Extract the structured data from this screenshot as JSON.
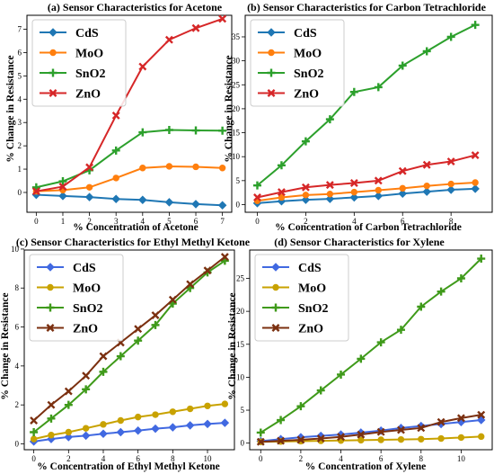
{
  "chart_data": [
    {
      "type": "line",
      "title": "(a) Sensor Characteristics for Acetone",
      "xlabel": "% Concentration of Acetone",
      "ylabel": "% Change in Resistance",
      "xlim": [
        -0.35,
        7.35
      ],
      "ylim": [
        -0.85,
        7.6
      ],
      "xticks": [
        0,
        1,
        2,
        3,
        4,
        5,
        6,
        7
      ],
      "yticks": [
        0,
        1,
        2,
        3,
        4,
        5,
        6,
        7
      ],
      "legend": "top-left",
      "x": [
        0,
        1,
        2,
        3,
        4,
        5,
        6,
        7
      ],
      "series": [
        {
          "name": "CdS",
          "color": "#1f77b4",
          "marker": "diamond",
          "values": [
            -0.1,
            -0.15,
            -0.2,
            -0.28,
            -0.32,
            -0.42,
            -0.5,
            -0.55
          ]
        },
        {
          "name": "MoO",
          "color": "#ff7f0e",
          "marker": "circle",
          "values": [
            0.05,
            0.1,
            0.22,
            0.62,
            1.05,
            1.12,
            1.1,
            1.05
          ]
        },
        {
          "name": "SnO2",
          "color": "#2ca02c",
          "marker": "plus",
          "values": [
            0.22,
            0.48,
            0.95,
            1.8,
            2.58,
            2.68,
            2.66,
            2.65
          ]
        },
        {
          "name": "ZnO",
          "color": "#d62728",
          "marker": "x",
          "values": [
            0.05,
            0.25,
            1.08,
            3.3,
            5.4,
            6.55,
            7.05,
            7.45
          ]
        }
      ]
    },
    {
      "type": "line",
      "title": "(b) Sensor Characteristics for Carbon Tetrachloride",
      "xlabel": "% Concentration of Carbon Tetrachloride",
      "ylabel": "% Change in Resistance",
      "xlim": [
        -0.5,
        9.7
      ],
      "ylim": [
        -1.6,
        39.5
      ],
      "xticks": [
        0,
        2,
        4,
        6,
        8
      ],
      "yticks": [
        0,
        5,
        10,
        15,
        20,
        25,
        30,
        35
      ],
      "legend": "top-left",
      "x": [
        0,
        1,
        2,
        3,
        4,
        5,
        6,
        7,
        8,
        9
      ],
      "series": [
        {
          "name": "CdS",
          "color": "#1f77b4",
          "marker": "diamond",
          "values": [
            0.3,
            0.7,
            1.0,
            1.2,
            1.5,
            1.8,
            2.3,
            2.7,
            3.1,
            3.3
          ]
        },
        {
          "name": "MoO",
          "color": "#ff7f0e",
          "marker": "circle",
          "values": [
            0.8,
            1.5,
            2.0,
            2.2,
            2.6,
            3.0,
            3.4,
            3.9,
            4.3,
            4.6
          ]
        },
        {
          "name": "SnO2",
          "color": "#2ca02c",
          "marker": "plus",
          "values": [
            4.0,
            8.2,
            13.2,
            17.8,
            23.5,
            24.5,
            29.0,
            32.0,
            35.0,
            37.5
          ]
        },
        {
          "name": "ZnO",
          "color": "#d62728",
          "marker": "x",
          "values": [
            1.5,
            2.6,
            3.6,
            4.1,
            4.5,
            5.0,
            7.0,
            8.3,
            9.0,
            10.3
          ]
        }
      ]
    },
    {
      "type": "line",
      "title": "(c) Sensor Characteristics for Ethyl Methyl Ketone",
      "xlabel": "% Concentration of Ethyl Methyl Ketone",
      "ylabel": "% Change in Resistance",
      "xlim": [
        -0.55,
        11.55
      ],
      "ylim": [
        -0.3,
        9.95
      ],
      "xticks": [
        0,
        2,
        4,
        6,
        8,
        10
      ],
      "yticks": [
        0,
        2,
        4,
        6,
        8,
        10
      ],
      "legend": "top-left",
      "x": [
        0,
        1,
        2,
        3,
        4,
        5,
        6,
        7,
        8,
        9,
        10,
        11
      ],
      "series": [
        {
          "name": "CdS",
          "color": "#4169e1",
          "marker": "diamond",
          "values": [
            0.12,
            0.25,
            0.35,
            0.42,
            0.52,
            0.6,
            0.68,
            0.78,
            0.85,
            0.95,
            1.02,
            1.08
          ]
        },
        {
          "name": "MoO",
          "color": "#c8a200",
          "marker": "circle",
          "values": [
            0.25,
            0.45,
            0.6,
            0.8,
            1.0,
            1.2,
            1.38,
            1.5,
            1.65,
            1.8,
            1.95,
            2.05
          ]
        },
        {
          "name": "SnO2",
          "color": "#3f9a1a",
          "marker": "plus",
          "values": [
            0.6,
            1.3,
            2.0,
            2.8,
            3.7,
            4.5,
            5.3,
            6.1,
            7.2,
            8.0,
            8.8,
            9.4
          ]
        },
        {
          "name": "ZnO",
          "color": "#7b3010",
          "marker": "x",
          "values": [
            1.2,
            2.0,
            2.7,
            3.5,
            4.5,
            5.2,
            5.9,
            6.6,
            7.4,
            8.2,
            8.9,
            9.6
          ]
        }
      ]
    },
    {
      "type": "line",
      "title": "(d) Sensor Characteristics for Xylene",
      "xlabel": "% Concentration of Xylene",
      "ylabel": "% Change in Resistance",
      "xlim": [
        -0.55,
        11.55
      ],
      "ylim": [
        -1.0,
        29.3
      ],
      "xticks": [
        0,
        2,
        4,
        6,
        8,
        10
      ],
      "yticks": [
        0,
        5,
        10,
        15,
        20,
        25
      ],
      "legend": "top-left",
      "x": [
        0,
        1,
        2,
        3,
        4,
        5,
        6,
        7,
        8,
        9,
        10,
        11
      ],
      "series": [
        {
          "name": "CdS",
          "color": "#4169e1",
          "marker": "diamond",
          "values": [
            0.3,
            0.6,
            0.9,
            1.1,
            1.3,
            1.6,
            1.9,
            2.3,
            2.6,
            2.9,
            3.2,
            3.5
          ]
        },
        {
          "name": "MoO",
          "color": "#c8a200",
          "marker": "circle",
          "values": [
            0.2,
            0.25,
            0.3,
            0.35,
            0.4,
            0.45,
            0.5,
            0.55,
            0.6,
            0.7,
            0.85,
            1.0
          ]
        },
        {
          "name": "SnO2",
          "color": "#3f9a1a",
          "marker": "plus",
          "values": [
            1.6,
            3.5,
            5.6,
            8.0,
            10.4,
            12.8,
            15.3,
            17.2,
            20.7,
            23.0,
            25.0,
            28.0
          ]
        },
        {
          "name": "ZnO",
          "color": "#7b3010",
          "marker": "x",
          "values": [
            0.2,
            0.35,
            0.5,
            0.7,
            0.95,
            1.3,
            1.7,
            2.0,
            2.3,
            3.2,
            3.8,
            4.3
          ]
        }
      ]
    }
  ]
}
